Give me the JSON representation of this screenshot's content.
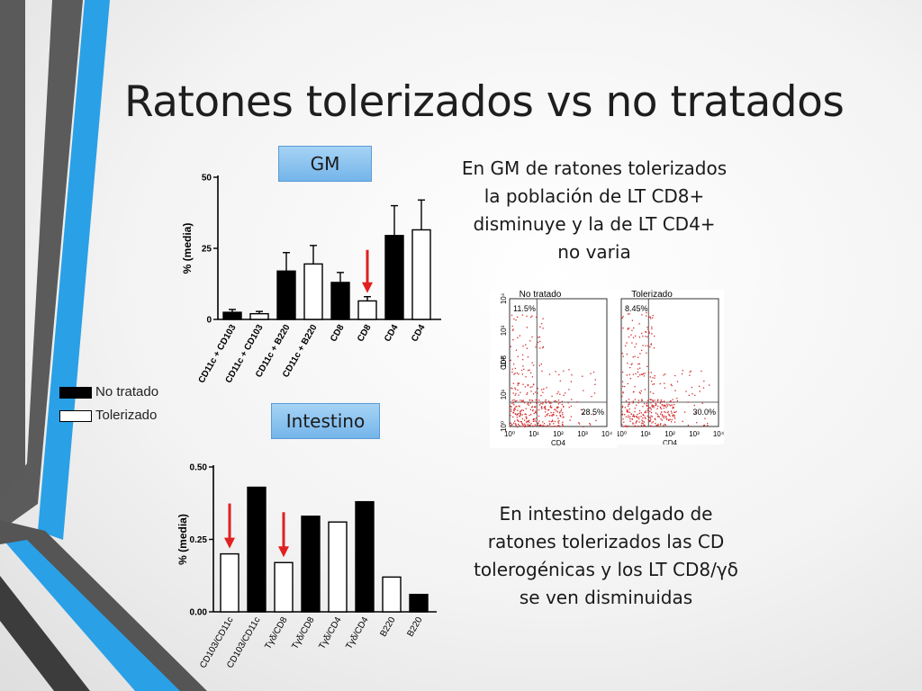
{
  "slide": {
    "title": "Ratones tolerizados vs no tratados",
    "gm_label": "GM",
    "intestino_label": "Intestino",
    "caption_top": "En  GM de ratones tolerizados la población de LT CD8+ disminuye y la de LT CD4+ no varia",
    "caption_bottom": "En intestino delgado de ratones tolerizados las CD tolerogénicas y los LT CD8/γδ se ven disminuidas"
  },
  "legend": {
    "items": [
      {
        "label": "No tratado",
        "color": "#000000"
      },
      {
        "label": "Tolerizado",
        "color": "#ffffff"
      }
    ]
  },
  "chart_data": [
    {
      "type": "bar",
      "ylabel": "% (media)",
      "ylim": [
        0,
        50
      ],
      "yticks": [
        "0",
        "25",
        "50"
      ],
      "categories": [
        "CD11c + CD103",
        "CD11c + CD103",
        "CD11c + B220",
        "CD11c + B220",
        "CD8",
        "CD8",
        "CD4",
        "CD4"
      ],
      "values": [
        2.5,
        2,
        17,
        19.5,
        13,
        6.5,
        29.5,
        31.5
      ],
      "errors": [
        1,
        0.8,
        6.5,
        6.5,
        3.5,
        1.5,
        10.5,
        10.5
      ],
      "colors": [
        "#000000",
        "#ffffff",
        "#000000",
        "#ffffff",
        "#000000",
        "#ffffff",
        "#000000",
        "#ffffff"
      ],
      "arrow_on": 5
    },
    {
      "type": "bar",
      "ylabel": "% (media)",
      "ylim": [
        0,
        0.5
      ],
      "yticks": [
        "0.00",
        "0.25",
        "0.50"
      ],
      "categories": [
        "CD103/CD11c",
        "CD103/CD11c",
        "Tγδ/CD8",
        "Tγδ/CD8",
        "Tγδ/CD4",
        "Tγδ/CD4",
        "B220",
        "B220"
      ],
      "values": [
        0.2,
        0.43,
        0.17,
        0.33,
        0.31,
        0.38,
        0.12,
        0.06
      ],
      "colors": [
        "#ffffff",
        "#000000",
        "#ffffff",
        "#000000",
        "#ffffff",
        "#000000",
        "#ffffff",
        "#000000"
      ],
      "arrows_on": [
        0,
        2
      ]
    },
    {
      "type": "scatter",
      "title": "No tratado",
      "xlabel": "CD4",
      "ylabel": "CD8",
      "axis_scale": "log",
      "tick_labels": [
        "10⁰",
        "10¹",
        "10²",
        "10³",
        "10⁴"
      ],
      "quadrant_labels": {
        "top_left": "11.5%",
        "bottom_right": "28.5%"
      }
    },
    {
      "type": "scatter",
      "title": "Tolerizado",
      "xlabel": "CD4",
      "axis_scale": "log",
      "tick_labels": [
        "10⁰",
        "10¹",
        "10²",
        "10³",
        "10⁴"
      ],
      "quadrant_labels": {
        "top_left": "8.45%",
        "bottom_right": "30.0%"
      }
    }
  ]
}
